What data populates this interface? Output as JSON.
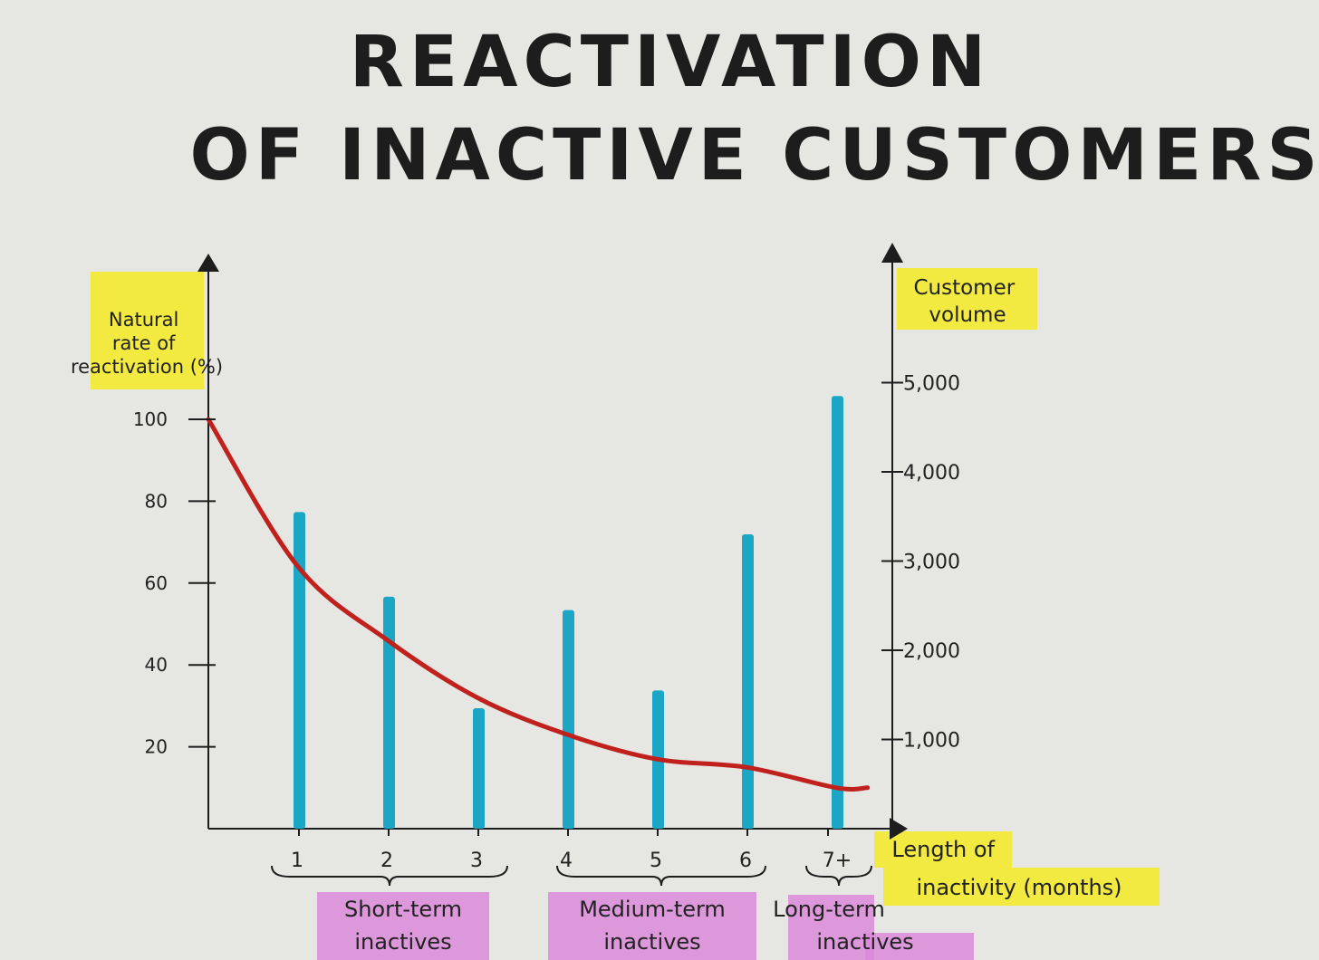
{
  "title_line1": "REACTIVATION",
  "title_line2": "OF INACTIVE CUSTOMERS",
  "colors": {
    "paper": "#e6e6e3",
    "bars": "#1aa6c4",
    "curve": "#c0211c",
    "ink": "#1d1d1d",
    "highlight_yellow": "#f3ea2e",
    "highlight_pink": "#d98ad9"
  },
  "chart_data": {
    "type": "bar",
    "categories": [
      "1",
      "2",
      "3",
      "4",
      "5",
      "6",
      "7+"
    ],
    "xlabel": "Length of inactivity (months)",
    "ylabel_left": "Natural rate of reactivation (%)",
    "ylabel_right": "Customer volume",
    "yticks_left": [
      "20",
      "40",
      "60",
      "80",
      "100"
    ],
    "yticks_right": [
      "1,000",
      "2,000",
      "3,000",
      "4,000",
      "5,000"
    ],
    "ylim_left": [
      0,
      100
    ],
    "ylim_right": [
      0,
      5000
    ],
    "series": [
      {
        "name": "Customer volume",
        "type": "bar",
        "axis": "right",
        "values": [
          3550,
          2600,
          1350,
          2450,
          1550,
          3300,
          4850
        ]
      },
      {
        "name": "Natural rate of reactivation (%)",
        "type": "line",
        "axis": "left",
        "x": [
          0,
          1,
          2,
          3,
          4,
          5,
          6,
          7,
          7.35
        ],
        "values": [
          100,
          64,
          46,
          32,
          23,
          17,
          15,
          10,
          10
        ]
      }
    ],
    "groups": [
      {
        "label": "Short-term inactives",
        "categories": [
          "1",
          "2",
          "3"
        ]
      },
      {
        "label": "Medium-term inactives",
        "categories": [
          "4",
          "5",
          "6"
        ]
      },
      {
        "label": "Long-term inactives",
        "categories": [
          "7+"
        ]
      }
    ]
  }
}
